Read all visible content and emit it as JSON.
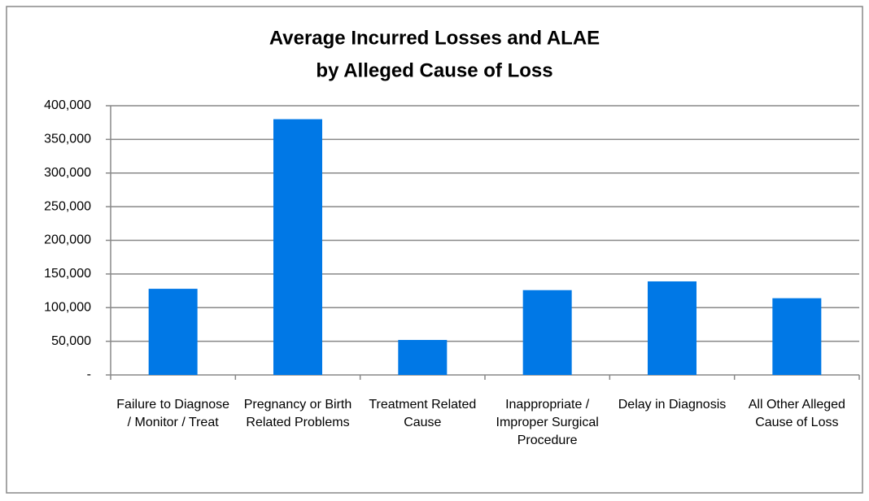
{
  "chart_data": {
    "type": "bar",
    "title": [
      "Average Incurred Losses and ALAE",
      "by Alleged Cause of Loss"
    ],
    "categories": [
      "Failure to Diagnose / Monitor / Treat",
      "Pregnancy or Birth Related Problems",
      "Treatment Related Cause",
      "Inappropriate / Improper Surgical Procedure",
      "Delay in Diagnosis",
      "All Other Alleged Cause of Loss"
    ],
    "values": [
      128000,
      380000,
      52000,
      126000,
      139000,
      114000
    ],
    "color": "#0078e6",
    "ylim": [
      0,
      400000
    ],
    "yticks": [
      {
        "value": 0,
        "label": "-"
      },
      {
        "value": 50000,
        "label": "50,000"
      },
      {
        "value": 100000,
        "label": "100,000"
      },
      {
        "value": 150000,
        "label": "150,000"
      },
      {
        "value": 200000,
        "label": "200,000"
      },
      {
        "value": 250000,
        "label": "250,000"
      },
      {
        "value": 300000,
        "label": "300,000"
      },
      {
        "value": 350000,
        "label": "350,000"
      },
      {
        "value": 400000,
        "label": "400,000"
      }
    ],
    "grid": true
  }
}
